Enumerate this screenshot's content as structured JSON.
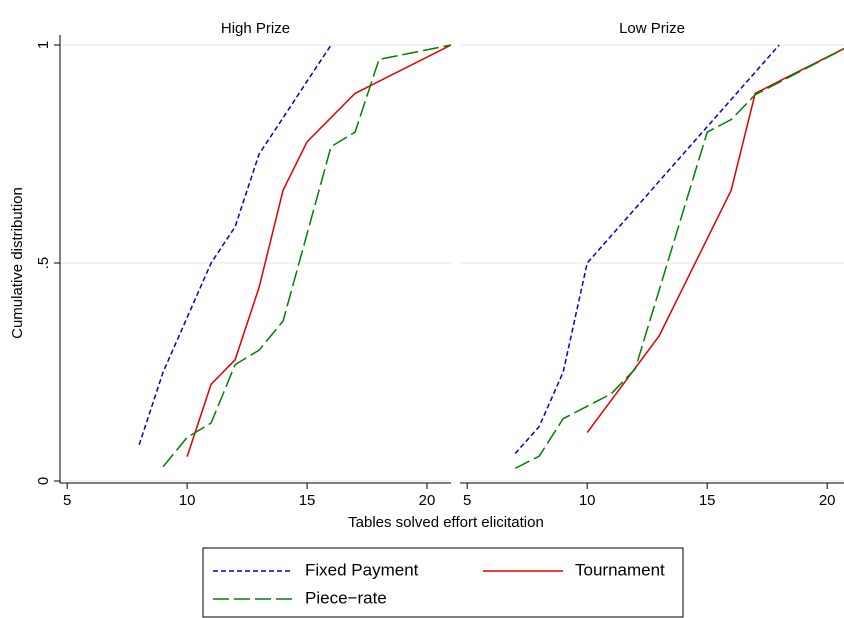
{
  "chart_data": [
    {
      "type": "line",
      "title": "High Prize",
      "xlim": [
        4.7,
        21
      ],
      "xticks": [
        5,
        10,
        15,
        20
      ],
      "ylim": [
        0,
        1
      ],
      "yticks": [
        0,
        {
          "value": 0.5,
          "label": ".5"
        },
        1
      ],
      "grid": true,
      "series": [
        {
          "name": "Fixed Payment",
          "color": "#0000cc",
          "dash": "5 3",
          "x": [
            8,
            9,
            10,
            11,
            12,
            13,
            14,
            15,
            16
          ],
          "values": [
            0.083,
            0.25,
            0.375,
            0.5,
            0.583,
            0.75,
            0.833,
            0.917,
            1
          ]
        },
        {
          "name": "Tournament",
          "color": "#e00000",
          "dash": "none",
          "x": [
            10,
            11,
            12,
            13,
            14,
            15,
            17,
            21
          ],
          "values": [
            0.056,
            0.222,
            0.278,
            0.444,
            0.667,
            0.778,
            0.889,
            1
          ]
        },
        {
          "name": "Piece−rate",
          "color": "#008000",
          "dash": "16 5",
          "x": [
            9,
            10,
            11,
            12,
            13,
            14,
            15,
            16,
            17,
            18,
            21
          ],
          "values": [
            0.033,
            0.1,
            0.133,
            0.267,
            0.3,
            0.367,
            0.567,
            0.767,
            0.8,
            0.967,
            1
          ]
        }
      ]
    },
    {
      "type": "line",
      "title": "Low Prize",
      "xlim": [
        4.7,
        20.7
      ],
      "xticks": [
        5,
        10,
        15,
        20
      ],
      "ylim": [
        0,
        1
      ],
      "grid": true,
      "series": [
        {
          "color": "#0000cc",
          "dash": "5 3",
          "x": [
            7,
            8,
            9,
            10,
            18
          ],
          "values": [
            0.063,
            0.125,
            0.25,
            0.5,
            1
          ]
        },
        {
          "color": "#e00000",
          "dash": "none",
          "x": [
            10,
            13,
            16,
            17,
            18,
            21
          ],
          "values": [
            0.111,
            0.333,
            0.667,
            0.889,
            0.917,
            1
          ]
        },
        {
          "color": "#008000",
          "dash": "16 5",
          "x": [
            7,
            8,
            9,
            11,
            12,
            15,
            16,
            17,
            21
          ],
          "values": [
            0.029,
            0.057,
            0.143,
            0.2,
            0.257,
            0.8,
            0.829,
            0.886,
            1
          ]
        }
      ]
    }
  ],
  "x_label": "Tables solved effort elicitation",
  "y_label": "Cumulative distribution"
}
